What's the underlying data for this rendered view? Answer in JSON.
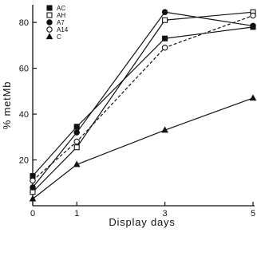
{
  "chart_data": {
    "type": "line",
    "title": "",
    "xlabel": "Display days",
    "ylabel": "% metMb",
    "x": [
      0,
      1,
      3,
      5
    ],
    "x_ticks": [
      0,
      1,
      3,
      5
    ],
    "y_ticks": [
      20,
      40,
      60,
      80
    ],
    "xlim": [
      0,
      5
    ],
    "ylim": [
      0,
      87
    ],
    "grid": false,
    "legend_position": "top-left",
    "series": [
      {
        "name": "AC",
        "marker": "filled-square",
        "line_style": "solid",
        "values": [
          13,
          34.5,
          73,
          78
        ]
      },
      {
        "name": "AH",
        "marker": "open-square",
        "line_style": "solid",
        "values": [
          6,
          25.5,
          81,
          84.5
        ]
      },
      {
        "name": "A7",
        "marker": "filled-circle",
        "line_style": "solid",
        "values": [
          8,
          32,
          84.5,
          78.5
        ]
      },
      {
        "name": "A14",
        "marker": "open-circle",
        "line_style": "dashed",
        "values": [
          11,
          28,
          69,
          83
        ]
      },
      {
        "name": "C",
        "marker": "filled-triangle",
        "line_style": "solid",
        "values": [
          3,
          18,
          33,
          47
        ]
      }
    ]
  },
  "colors": {
    "ink": "#111111",
    "background": "#ffffff"
  }
}
